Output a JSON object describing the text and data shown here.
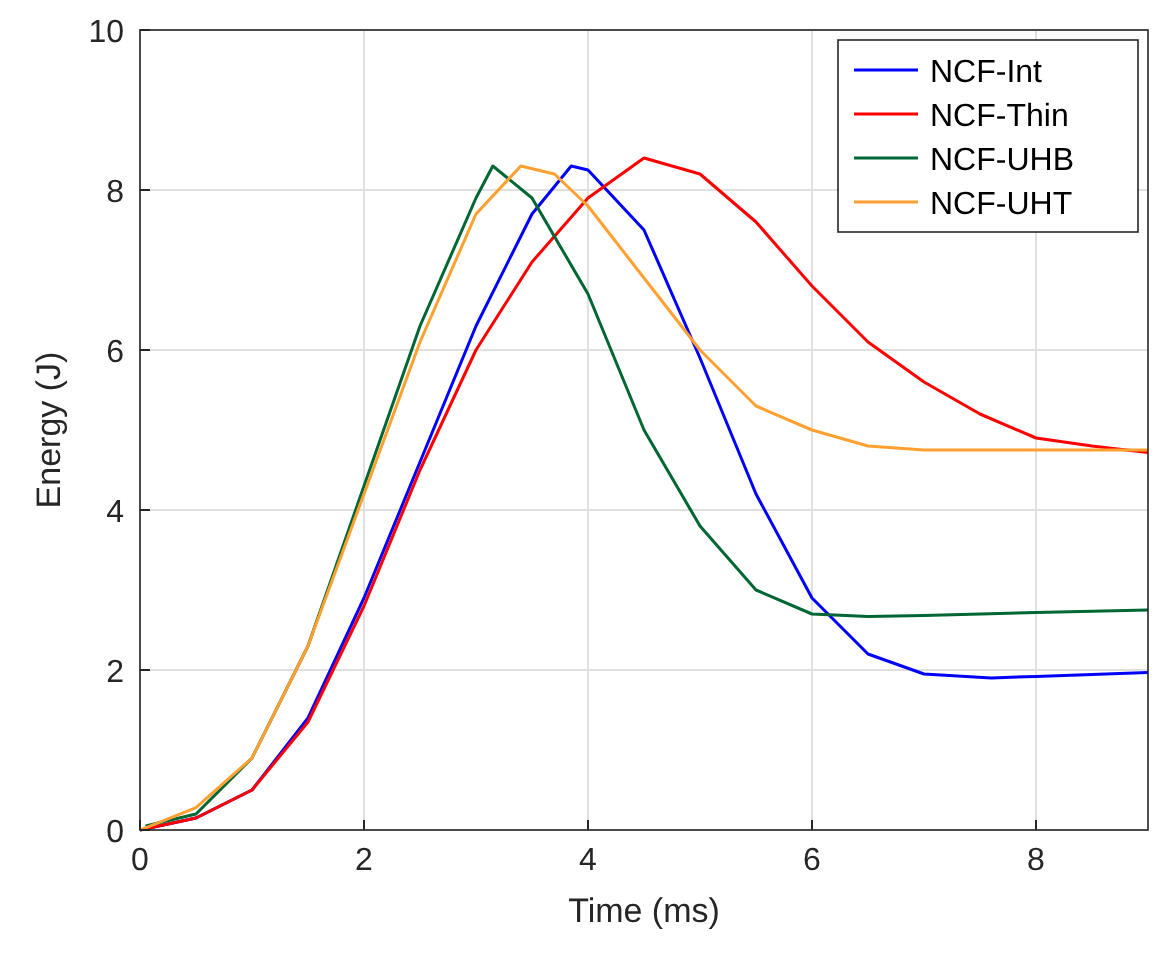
{
  "chart_data": {
    "type": "line",
    "xlabel": "Time (ms)",
    "ylabel": "Energy (J)",
    "xlim": [
      0,
      9
    ],
    "xticks": [
      0,
      2,
      4,
      6,
      8
    ],
    "ylim": [
      0,
      10
    ],
    "yticks": [
      0,
      2,
      4,
      6,
      8,
      10
    ],
    "grid": true,
    "legend": "top right",
    "line_style": "solid",
    "series": [
      {
        "name": "NCF-Int",
        "color": "#0000ff",
        "x": [
          0,
          0.5,
          1,
          1.5,
          2,
          2.5,
          3,
          3.5,
          3.85,
          4,
          4.5,
          5,
          5.5,
          6,
          6.5,
          7,
          7.6,
          8,
          9
        ],
        "values": [
          0,
          0.15,
          0.5,
          1.4,
          2.9,
          4.6,
          6.3,
          7.7,
          8.3,
          8.25,
          7.5,
          5.9,
          4.2,
          2.9,
          2.2,
          1.95,
          1.9,
          1.92,
          1.97
        ]
      },
      {
        "name": "NCF-Thin",
        "color": "#ff0000",
        "x": [
          0,
          0.5,
          1,
          1.5,
          2,
          2.5,
          3,
          3.5,
          4,
          4.5,
          5,
          5.5,
          6,
          6.5,
          7,
          7.5,
          8,
          8.5,
          9
        ],
        "values": [
          0,
          0.15,
          0.5,
          1.35,
          2.8,
          4.5,
          6.0,
          7.1,
          7.9,
          8.4,
          8.2,
          7.6,
          6.8,
          6.1,
          5.6,
          5.2,
          4.9,
          4.8,
          4.72
        ]
      },
      {
        "name": "NCF-UHB",
        "color": "#006633",
        "x": [
          0.05,
          0.5,
          1,
          1.5,
          2,
          2.5,
          3,
          3.15,
          3.5,
          4,
          4.5,
          5,
          5.5,
          6,
          6.5,
          7,
          8,
          9
        ],
        "values": [
          0.05,
          0.2,
          0.9,
          2.3,
          4.3,
          6.3,
          7.9,
          8.3,
          7.9,
          6.7,
          5.0,
          3.8,
          3.0,
          2.7,
          2.67,
          2.68,
          2.72,
          2.75
        ]
      },
      {
        "name": "NCF-UHT",
        "color": "#ffa030",
        "x": [
          0,
          0.5,
          1,
          1.5,
          2,
          2.5,
          3,
          3.4,
          3.7,
          4,
          4.5,
          5,
          5.5,
          6,
          6.5,
          7,
          8,
          9
        ],
        "values": [
          0,
          0.28,
          0.9,
          2.3,
          4.2,
          6.1,
          7.7,
          8.3,
          8.2,
          7.8,
          6.9,
          6.0,
          5.3,
          5.0,
          4.8,
          4.75,
          4.75,
          4.75
        ]
      }
    ]
  }
}
